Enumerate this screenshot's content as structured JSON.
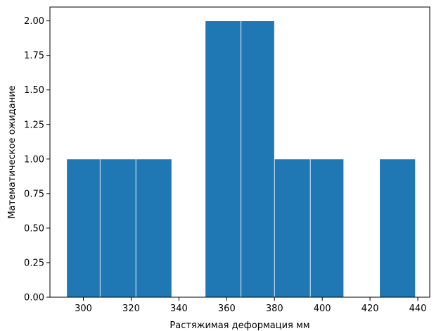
{
  "chart_data": {
    "type": "bar",
    "title": "",
    "xlabel": "Растяжимая деформация мм",
    "ylabel": "Математическое ожидание",
    "xlim": [
      286,
      445
    ],
    "ylim": [
      0,
      2.1
    ],
    "grid": false,
    "colors": {
      "bar": "#1f77b4",
      "bar_edge": "#ffffff",
      "axis": "#000000",
      "background": "#ffffff"
    },
    "x_ticks": [
      300,
      320,
      340,
      360,
      380,
      400,
      420,
      440
    ],
    "y_ticks": [
      0,
      0.25,
      0.5,
      0.75,
      1.0,
      1.25,
      1.5,
      1.75,
      2.0
    ],
    "x_tick_labels": [
      "300",
      "320",
      "340",
      "360",
      "380",
      "400",
      "420",
      "440"
    ],
    "y_tick_labels": [
      "0.00",
      "0.25",
      "0.50",
      "0.75",
      "1.00",
      "1.25",
      "1.50",
      "1.75",
      "2.00"
    ],
    "bins": [
      {
        "start": 293,
        "end": 307,
        "value": 1
      },
      {
        "start": 307,
        "end": 322,
        "value": 1
      },
      {
        "start": 322,
        "end": 337,
        "value": 1
      },
      {
        "start": 337,
        "end": 351,
        "value": 0
      },
      {
        "start": 351,
        "end": 366,
        "value": 2
      },
      {
        "start": 366,
        "end": 380,
        "value": 2
      },
      {
        "start": 380,
        "end": 395,
        "value": 1
      },
      {
        "start": 395,
        "end": 409,
        "value": 1
      },
      {
        "start": 409,
        "end": 424,
        "value": 0
      },
      {
        "start": 424,
        "end": 439,
        "value": 1
      }
    ]
  }
}
